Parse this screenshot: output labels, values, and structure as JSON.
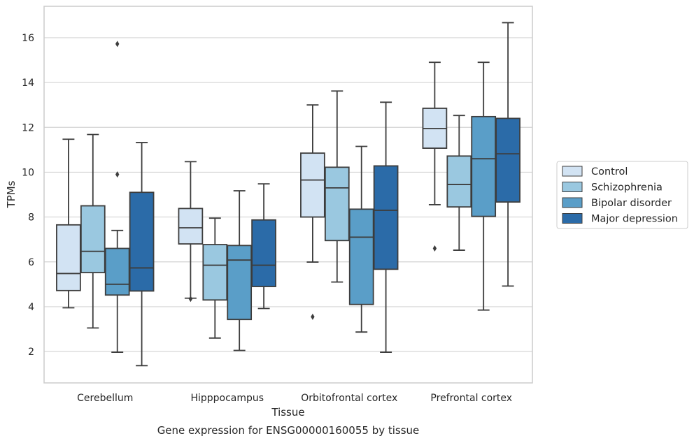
{
  "chart_data": {
    "type": "box",
    "xlabel": "Tissue",
    "ylabel": "TPMs",
    "caption": "Gene expression for ENSG00000160055 by tissue",
    "ylim": [
      0.6,
      17.4
    ],
    "yticks": [
      "2",
      "4",
      "6",
      "8",
      "10",
      "12",
      "14",
      "16"
    ],
    "grid": "horizontal",
    "legend_position": "right-outside",
    "categories": [
      "Cerebellum",
      "Hipppocampus",
      "Orbitofrontal cortex",
      "Prefrontal cortex"
    ],
    "series": [
      {
        "name": "Control",
        "color": "#d2e3f3",
        "boxes": [
          {
            "whisker_low": 3.95,
            "q1": 4.72,
            "median": 5.48,
            "q3": 7.65,
            "whisker_high": 11.47,
            "outliers": []
          },
          {
            "whisker_low": 4.38,
            "q1": 6.8,
            "median": 7.52,
            "q3": 8.38,
            "whisker_high": 10.47,
            "outliers": [
              4.35
            ]
          },
          {
            "whisker_low": 5.99,
            "q1": 8.0,
            "median": 9.65,
            "q3": 10.85,
            "whisker_high": 13.0,
            "outliers": [
              3.55
            ]
          },
          {
            "whisker_low": 8.55,
            "q1": 11.07,
            "median": 11.95,
            "q3": 12.85,
            "whisker_high": 14.9,
            "outliers": [
              6.6
            ]
          }
        ]
      },
      {
        "name": "Schizophrenia",
        "color": "#9ac8e0",
        "boxes": [
          {
            "whisker_low": 3.05,
            "q1": 5.52,
            "median": 6.47,
            "q3": 8.5,
            "whisker_high": 11.68,
            "outliers": []
          },
          {
            "whisker_low": 2.6,
            "q1": 4.3,
            "median": 5.85,
            "q3": 6.77,
            "whisker_high": 7.95,
            "outliers": []
          },
          {
            "whisker_low": 5.1,
            "q1": 6.95,
            "median": 9.3,
            "q3": 10.22,
            "whisker_high": 13.62,
            "outliers": []
          },
          {
            "whisker_low": 6.52,
            "q1": 8.45,
            "median": 9.45,
            "q3": 10.72,
            "whisker_high": 12.53,
            "outliers": []
          }
        ]
      },
      {
        "name": "Bipolar disorder",
        "color": "#5a9ec8",
        "boxes": [
          {
            "whisker_low": 1.97,
            "q1": 4.52,
            "median": 5.0,
            "q3": 6.6,
            "whisker_high": 7.4,
            "outliers": [
              9.9,
              15.72
            ]
          },
          {
            "whisker_low": 2.05,
            "q1": 3.43,
            "median": 6.08,
            "q3": 6.73,
            "whisker_high": 9.17,
            "outliers": []
          },
          {
            "whisker_low": 2.87,
            "q1": 4.1,
            "median": 7.1,
            "q3": 8.35,
            "whisker_high": 11.15,
            "outliers": []
          },
          {
            "whisker_low": 3.85,
            "q1": 8.03,
            "median": 10.6,
            "q3": 12.48,
            "whisker_high": 14.9,
            "outliers": []
          }
        ]
      },
      {
        "name": "Major depression",
        "color": "#2b6ba8",
        "boxes": [
          {
            "whisker_low": 1.37,
            "q1": 4.7,
            "median": 5.73,
            "q3": 9.1,
            "whisker_high": 11.32,
            "outliers": []
          },
          {
            "whisker_low": 3.92,
            "q1": 4.9,
            "median": 5.85,
            "q3": 7.87,
            "whisker_high": 9.48,
            "outliers": []
          },
          {
            "whisker_low": 1.97,
            "q1": 5.67,
            "median": 8.3,
            "q3": 10.28,
            "whisker_high": 13.12,
            "outliers": []
          },
          {
            "whisker_low": 4.92,
            "q1": 8.67,
            "median": 10.82,
            "q3": 12.4,
            "whisker_high": 16.67,
            "outliers": []
          }
        ]
      }
    ]
  }
}
